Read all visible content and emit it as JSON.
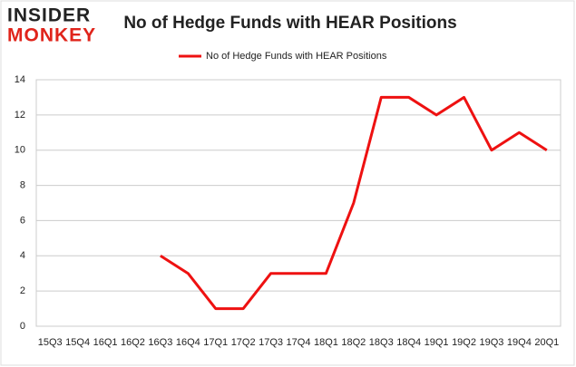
{
  "logo": {
    "line1": "INSIDER",
    "line2": "MONKEY"
  },
  "chart_data": {
    "type": "line",
    "title": "No of Hedge Funds with HEAR Positions",
    "categories": [
      "15Q3",
      "15Q4",
      "16Q1",
      "16Q2",
      "16Q3",
      "16Q4",
      "17Q1",
      "17Q2",
      "17Q3",
      "17Q4",
      "18Q1",
      "18Q2",
      "18Q3",
      "18Q4",
      "19Q1",
      "19Q2",
      "19Q3",
      "19Q4",
      "20Q1"
    ],
    "series": [
      {
        "name": "No of Hedge Funds with HEAR Positions",
        "color": "#ee1111",
        "values": [
          null,
          null,
          null,
          null,
          4,
          3,
          1,
          1,
          3,
          3,
          3,
          7,
          13,
          13,
          12,
          13,
          10,
          11,
          10
        ]
      }
    ],
    "ylim": [
      0,
      14
    ],
    "yticks": [
      0,
      2,
      4,
      6,
      8,
      10,
      12,
      14
    ],
    "grid": true,
    "legend": "top"
  }
}
